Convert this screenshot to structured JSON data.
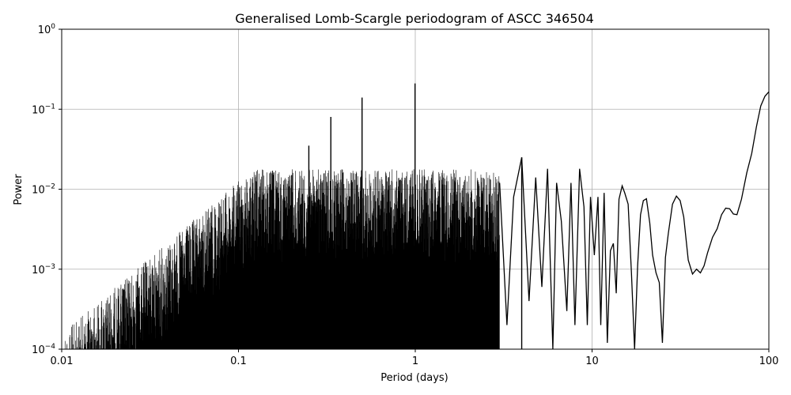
{
  "chart_data": {
    "type": "line",
    "title": "Generalised Lomb-Scargle periodogram of ASCC 346504",
    "xlabel": "Period (days)",
    "ylabel": "Power",
    "xscale": "log",
    "yscale": "log",
    "xlim": [
      0.01,
      100
    ],
    "ylim": [
      0.0001,
      1
    ],
    "grid": true,
    "line_color": "#000000",
    "xticks": [
      {
        "value": 0.01,
        "label": "0.01"
      },
      {
        "value": 0.1,
        "label": "0.1"
      },
      {
        "value": 1,
        "label": "1"
      },
      {
        "value": 10,
        "label": "10"
      },
      {
        "value": 100,
        "label": "100"
      }
    ],
    "yticks": [
      {
        "value": 0.0001,
        "base": "10",
        "exp": "−4"
      },
      {
        "value": 0.001,
        "base": "10",
        "exp": "−3"
      },
      {
        "value": 0.01,
        "base": "10",
        "exp": "−2"
      },
      {
        "value": 0.1,
        "base": "10",
        "exp": "−1"
      },
      {
        "value": 1,
        "base": "10",
        "exp": "0"
      }
    ],
    "peaks": [
      {
        "period": 0.2,
        "power": 0.015
      },
      {
        "period": 0.25,
        "power": 0.035
      },
      {
        "period": 0.333,
        "power": 0.08
      },
      {
        "period": 0.5,
        "power": 0.14
      },
      {
        "period": 0.997,
        "power": 0.21
      },
      {
        "period": 4.0,
        "power": 0.025
      }
    ],
    "series": [
      {
        "x": [
          3.0,
          3.3,
          3.6,
          4.0,
          4.4,
          4.8,
          5.2,
          5.6,
          6.0,
          6.3,
          6.7,
          7.2,
          7.6,
          8.0,
          8.5,
          9.0,
          9.4,
          9.8,
          10.3,
          10.8,
          11.2,
          11.7,
          12.2,
          12.7,
          13.2,
          13.7,
          14.2,
          14.8,
          15.3,
          16.0,
          16.7,
          17.4,
          18.1,
          18.8,
          19.5,
          20.3,
          21.2,
          22.0,
          23.0,
          24.0,
          25.0,
          26.0,
          27.0,
          28.5,
          30.0,
          31.5,
          33.0,
          35.0,
          37.0,
          39.0,
          41.0,
          43.0,
          45.0,
          48.0,
          51.0,
          54.0,
          57.0,
          60.0,
          63.0,
          66.0,
          70.0,
          75.0,
          80.0,
          85.0,
          90.0,
          95.0,
          100.0
        ],
        "y": [
          0.012,
          0.0002,
          0.008,
          0.025,
          0.0004,
          0.014,
          0.0006,
          0.018,
          0.0001,
          0.012,
          0.004,
          0.0003,
          0.012,
          0.0002,
          0.018,
          0.006,
          0.0002,
          0.008,
          0.0015,
          0.008,
          0.0002,
          0.009,
          0.00012,
          0.0017,
          0.0021,
          0.0005,
          0.0075,
          0.011,
          0.009,
          0.0065,
          0.0009,
          0.0001,
          0.0011,
          0.0048,
          0.0072,
          0.0076,
          0.0038,
          0.0015,
          0.0009,
          0.00068,
          0.00012,
          0.0014,
          0.0028,
          0.0065,
          0.0082,
          0.0072,
          0.0045,
          0.0013,
          0.00087,
          0.001,
          0.0009,
          0.0011,
          0.0016,
          0.0025,
          0.0032,
          0.0048,
          0.0058,
          0.0057,
          0.0049,
          0.0048,
          0.0075,
          0.016,
          0.028,
          0.06,
          0.11,
          0.145,
          0.165
        ]
      }
    ]
  }
}
